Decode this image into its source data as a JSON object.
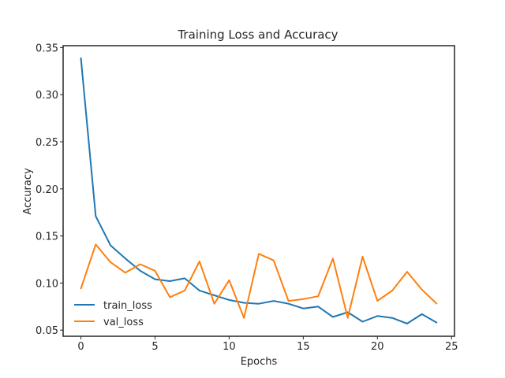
{
  "chart_data": {
    "type": "line",
    "title": "Training Loss and Accuracy",
    "xlabel": "Epochs",
    "ylabel": "Accuracy",
    "xlim": [
      -1.2,
      25.2
    ],
    "ylim": [
      0.0435,
      0.352
    ],
    "xticks": [
      0,
      5,
      10,
      15,
      20,
      25
    ],
    "yticks": [
      0.05,
      0.1,
      0.15,
      0.2,
      0.25,
      0.3,
      0.35
    ],
    "ytick_labels": [
      "0.05",
      "0.10",
      "0.15",
      "0.20",
      "0.25",
      "0.30",
      "0.35"
    ],
    "grid": false,
    "legend_position": "lower-left",
    "x": [
      0,
      1,
      2,
      3,
      4,
      5,
      6,
      7,
      8,
      9,
      10,
      11,
      12,
      13,
      14,
      15,
      16,
      17,
      18,
      19,
      20,
      21,
      22,
      23,
      24
    ],
    "series": [
      {
        "name": "train_loss",
        "color": "#1f77b4",
        "values": [
          0.339,
          0.171,
          0.14,
          0.126,
          0.113,
          0.104,
          0.102,
          0.105,
          0.092,
          0.087,
          0.082,
          0.079,
          0.078,
          0.081,
          0.078,
          0.073,
          0.075,
          0.064,
          0.069,
          0.059,
          0.065,
          0.063,
          0.057,
          0.067,
          0.058
        ]
      },
      {
        "name": "val_loss",
        "color": "#ff7f0e",
        "values": [
          0.094,
          0.141,
          0.122,
          0.111,
          0.12,
          0.113,
          0.085,
          0.092,
          0.123,
          0.078,
          0.103,
          0.063,
          0.131,
          0.124,
          0.081,
          0.083,
          0.086,
          0.126,
          0.063,
          0.128,
          0.081,
          0.092,
          0.112,
          0.093,
          0.078
        ]
      }
    ]
  }
}
